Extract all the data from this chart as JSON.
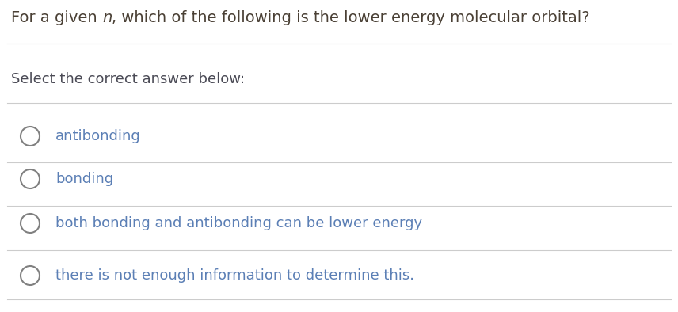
{
  "title_normal": "For a given ",
  "title_italic": "n",
  "title_rest": ", which of the following is the lower energy molecular orbital?",
  "subtitle": "Select the correct answer below:",
  "options": [
    "antibonding",
    "bonding",
    "both bonding and antibonding can be lower energy",
    "there is not enough information to determine this."
  ],
  "bg_color": "#ffffff",
  "title_color": "#4a4035",
  "subtitle_color": "#4a4a55",
  "option_color": "#5b7fb5",
  "circle_edge_color": "#808080",
  "line_color": "#cccccc",
  "title_fontsize": 14.0,
  "subtitle_fontsize": 13.0,
  "option_fontsize": 13.0,
  "fig_width": 8.56,
  "fig_height": 3.94,
  "dpi": 100
}
